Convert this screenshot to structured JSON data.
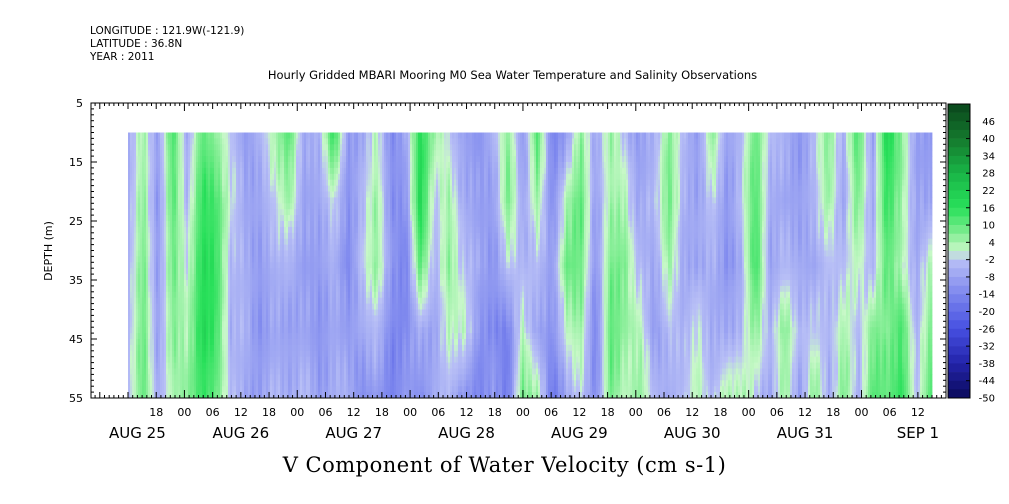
{
  "header": {
    "longitude": "LONGITUDE : 121.9W(-121.9)",
    "latitude": "LATITUDE : 36.8N",
    "year": "YEAR : 2011"
  },
  "chart_data": {
    "type": "heatmap",
    "title": "Hourly Gridded MBARI Mooring M0 Sea Water Temperature and Salinity Observations",
    "xlabel": "V Component of Water Velocity (cm s-1)",
    "ylabel": "DEPTH (m)",
    "ylim": [
      5,
      55
    ],
    "y_inverted": true,
    "y_ticks": [
      5,
      15,
      25,
      35,
      45,
      55
    ],
    "depth_range_with_data": [
      10,
      55
    ],
    "x_range_hours": [
      "2011-08-25 12:00",
      "2011-09-01 15:00"
    ],
    "hour_tick_labels": [
      "18",
      "00",
      "06",
      "12",
      "18",
      "00",
      "06",
      "12",
      "18",
      "00",
      "06",
      "12",
      "18",
      "00",
      "06",
      "12",
      "18",
      "00",
      "06",
      "12",
      "18",
      "00",
      "06",
      "12",
      "18",
      "00",
      "06",
      "12"
    ],
    "date_labels": [
      "AUG 25",
      "AUG 26",
      "AUG 27",
      "AUG 28",
      "AUG 29",
      "AUG 30",
      "AUG 31",
      "SEP  1"
    ],
    "colorbar_labels": [
      "46",
      "40",
      "34",
      "28",
      "22",
      "16",
      "10",
      "4",
      "-2",
      "-8",
      "-14",
      "-20",
      "-26",
      "-32",
      "-38",
      "-44",
      "-50"
    ],
    "colorbar_range": [
      -50,
      52
    ],
    "colorbar_step": 3,
    "column_profiles_cm_s": [
      [
        -7,
        -6,
        -5,
        -4,
        -3
      ],
      [
        4,
        6,
        8,
        9,
        10
      ],
      [
        -8,
        -10,
        -9,
        -8,
        -6
      ],
      [
        12,
        10,
        8,
        6,
        3
      ],
      [
        -6,
        -3,
        1,
        4,
        7
      ],
      [
        10,
        14,
        16,
        17,
        14
      ],
      [
        6,
        13,
        15,
        14,
        10
      ],
      [
        -2,
        0,
        -4,
        -6,
        -3
      ],
      [
        -10,
        -8,
        -6,
        -5,
        -8
      ],
      [
        -4,
        -7,
        -9,
        -11,
        -8
      ],
      [
        3,
        -2,
        -6,
        -8,
        -5
      ],
      [
        12,
        6,
        -4,
        -8,
        -6
      ],
      [
        -8,
        -9,
        -10,
        -8,
        -4
      ],
      [
        -5,
        -7,
        -9,
        -11,
        -9
      ],
      [
        15,
        0,
        -5,
        -7,
        -6
      ],
      [
        -10,
        -12,
        -14,
        -10,
        -6
      ],
      [
        -6,
        -3,
        -1,
        -6,
        -12
      ],
      [
        1,
        4,
        5,
        -4,
        -10
      ],
      [
        -12,
        -11,
        -9,
        -13,
        -15
      ],
      [
        -8,
        -12,
        -16,
        -14,
        -10
      ],
      [
        18,
        20,
        12,
        -5,
        -12
      ],
      [
        4,
        -3,
        -5,
        -8,
        -6
      ],
      [
        -2,
        4,
        6,
        2,
        -4
      ],
      [
        -8,
        -6,
        -2,
        3,
        -10
      ],
      [
        -12,
        -10,
        -8,
        -12,
        -16
      ],
      [
        -4,
        -8,
        -10,
        -12,
        -8
      ],
      [
        6,
        8,
        -2,
        -16,
        -18
      ],
      [
        -10,
        -7,
        -4,
        3,
        10
      ],
      [
        12,
        5,
        -3,
        -8,
        4
      ],
      [
        -15,
        -13,
        -10,
        -12,
        -18
      ],
      [
        -8,
        4,
        10,
        2,
        -6
      ],
      [
        5,
        10,
        8,
        4,
        -2
      ],
      [
        -6,
        -8,
        -10,
        -14,
        -12
      ],
      [
        4,
        3,
        7,
        10,
        8
      ],
      [
        -2,
        4,
        8,
        6,
        2
      ],
      [
        -10,
        -8,
        -4,
        3,
        6
      ],
      [
        -6,
        -4,
        -8,
        -10,
        -4
      ],
      [
        8,
        10,
        6,
        -2,
        -6
      ],
      [
        -4,
        -6,
        -8,
        -6,
        -4
      ],
      [
        -9,
        -7,
        -6,
        2,
        4
      ],
      [
        6,
        -2,
        -6,
        -8,
        -5
      ],
      [
        -8,
        -10,
        -11,
        -6,
        4
      ],
      [
        -4,
        -2,
        -6,
        -4,
        3
      ],
      [
        10,
        12,
        14,
        6,
        -2
      ],
      [
        -3,
        -6,
        -8,
        -4,
        -6
      ],
      [
        -6,
        -8,
        -4,
        6,
        4
      ],
      [
        -10,
        -8,
        -6,
        -3,
        -8
      ],
      [
        -4,
        -5,
        -8,
        -2,
        6
      ],
      [
        8,
        6,
        -2,
        -4,
        -6
      ],
      [
        -6,
        -8,
        -3,
        4,
        8
      ],
      [
        12,
        8,
        2,
        -4,
        -6
      ],
      [
        -8,
        -6,
        -4,
        8,
        12
      ],
      [
        18,
        14,
        10,
        6,
        9
      ],
      [
        8,
        6,
        4,
        14,
        16
      ],
      [
        -10,
        -9,
        -8,
        -6,
        -4
      ],
      [
        -10,
        -8,
        4,
        8,
        12
      ]
    ],
    "colors": {
      "negative_extreme": "#0a0a5a",
      "negative_mid": "#4f5ce6",
      "near_zero": "#b9c0f4",
      "positive_near": "#8ff2a2",
      "positive_mid": "#1ee45a",
      "positive_extreme": "#0b4a1c"
    }
  }
}
